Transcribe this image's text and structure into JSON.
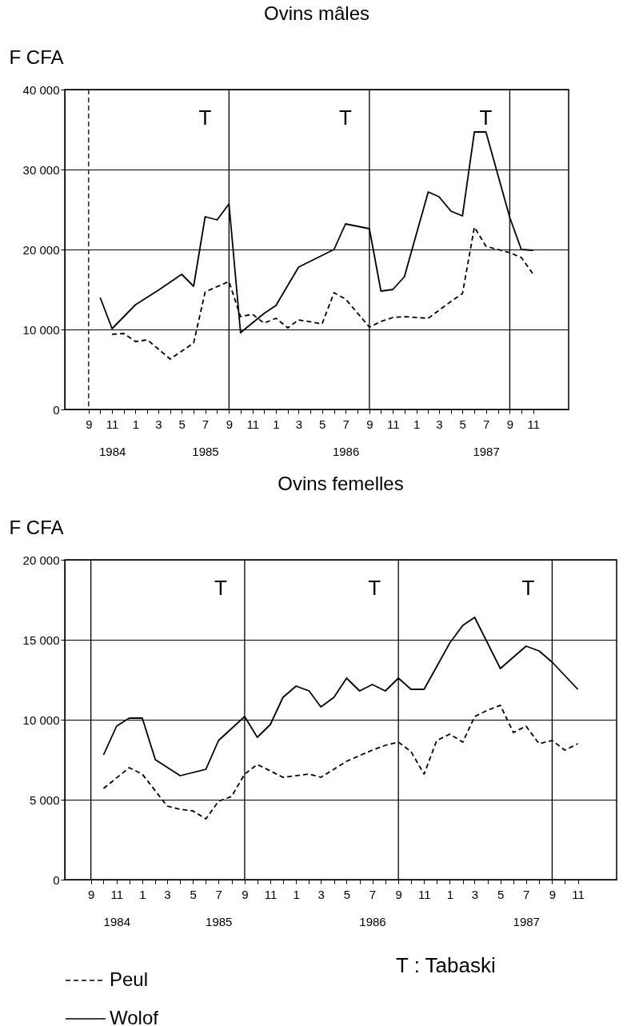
{
  "chart_data": [
    {
      "type": "line",
      "title": "Ovins mâles",
      "ylabel": "F CFA",
      "xlim": [
        "1984-07",
        "1988-02"
      ],
      "ylim": [
        0,
        40000
      ],
      "xticks": [
        {
          "value": "1984-09",
          "label": "9"
        },
        {
          "value": "1984-10",
          "label": null
        },
        {
          "value": "1984-11",
          "label": "11\n1984"
        },
        {
          "value": "1984-12",
          "label": null
        },
        {
          "value": "1985-01",
          "label": "1"
        },
        {
          "value": "1985-02",
          "label": null
        },
        {
          "value": "1985-03",
          "label": "3"
        },
        {
          "value": "1985-04",
          "label": null
        },
        {
          "value": "1985-05",
          "label": "5"
        },
        {
          "value": "1985-06",
          "label": null
        },
        {
          "value": "1985-07",
          "label": "7\n1985"
        },
        {
          "value": "1985-08",
          "label": null
        },
        {
          "value": "1985-09",
          "label": "9"
        },
        {
          "value": "1985-10",
          "label": null
        },
        {
          "value": "1985-11",
          "label": "11"
        },
        {
          "value": "1985-12",
          "label": null
        },
        {
          "value": "1986-01",
          "label": "1"
        },
        {
          "value": "1986-02",
          "label": null
        },
        {
          "value": "1986-03",
          "label": "3"
        },
        {
          "value": "1986-04",
          "label": null
        },
        {
          "value": "1986-05",
          "label": "5"
        },
        {
          "value": "1986-06",
          "label": null
        },
        {
          "value": "1986-07",
          "label": "7\n1986"
        },
        {
          "value": "1986-08",
          "label": null
        },
        {
          "value": "1986-09",
          "label": "9"
        },
        {
          "value": "1986-10",
          "label": null
        },
        {
          "value": "1986-11",
          "label": "11"
        },
        {
          "value": "1986-12",
          "label": null
        },
        {
          "value": "1987-01",
          "label": "1"
        },
        {
          "value": "1987-02",
          "label": null
        },
        {
          "value": "1987-03",
          "label": "3"
        },
        {
          "value": "1987-04",
          "label": null
        },
        {
          "value": "1987-05",
          "label": "5"
        },
        {
          "value": "1987-06",
          "label": null
        },
        {
          "value": "1987-07",
          "label": "7\n1987"
        },
        {
          "value": "1987-08",
          "label": null
        },
        {
          "value": "1987-09",
          "label": "9"
        },
        {
          "value": "1987-10",
          "label": null
        },
        {
          "value": "1987-11",
          "label": "11"
        }
      ],
      "yticks": [
        0,
        {
          "value": 10000,
          "label": "10 000"
        },
        {
          "value": 20000,
          "label": "20 000"
        },
        {
          "value": 30000,
          "label": "30 000"
        },
        {
          "value": 40000,
          "label": "40 000"
        }
      ],
      "grid": "y",
      "legend": false,
      "series": [
        {
          "color": "#000000",
          "line_style": "dashed",
          "x": [
            "1984-11",
            "1984-12",
            "1985-01",
            "1985-02",
            "1985-04",
            "1985-06",
            "1985-07",
            "1985-09",
            "1985-10",
            "1985-11",
            "1985-12",
            "1986-01",
            "1986-02",
            "1986-03",
            "1986-05",
            "1986-06",
            "1986-07",
            "1986-09",
            "1986-10",
            "1986-11",
            "1986-12",
            "1987-02",
            "1987-04",
            "1987-05",
            "1987-06",
            "1987-07",
            "1987-09",
            "1987-10",
            "1987-11"
          ],
          "values": [
            9400,
            9500,
            8500,
            8700,
            6300,
            8300,
            14700,
            16000,
            11600,
            11900,
            10800,
            11400,
            10200,
            11200,
            10700,
            14600,
            13800,
            10300,
            11000,
            11500,
            11600,
            11400,
            13500,
            14500,
            22800,
            20400,
            19600,
            19000,
            16900
          ]
        },
        {
          "color": "#000000",
          "line_style": "solid",
          "x": [
            "1984-10",
            "1984-11",
            "1985-01",
            "1985-03",
            "1985-05",
            "1985-06",
            "1985-07",
            "1985-08",
            "1985-09",
            "1985-10",
            "1985-12",
            "1986-01",
            "1986-03",
            "1986-06",
            "1986-07",
            "1986-09",
            "1986-10",
            "1986-11",
            "1986-12",
            "1987-02",
            "1987-03",
            "1987-04",
            "1987-05",
            "1987-06",
            "1987-07",
            "1987-09",
            "1987-10",
            "1987-11"
          ],
          "values": [
            14000,
            10100,
            13100,
            14900,
            16900,
            15400,
            24100,
            23700,
            25700,
            9600,
            12000,
            13000,
            17800,
            20000,
            23200,
            22600,
            14800,
            15000,
            16600,
            27200,
            26600,
            24800,
            24200,
            34700,
            34700,
            24000,
            20000,
            19900
          ]
        }
      ],
      "ref_lines": [
        {
          "axis": "x",
          "value": "1984-09",
          "color": "#000000",
          "line_style": "dashed"
        },
        {
          "axis": "x",
          "value": "1985-09",
          "color": "#000000",
          "label": "T"
        },
        {
          "axis": "x",
          "value": "1986-09",
          "color": "#000000",
          "label": "T"
        },
        {
          "axis": "x",
          "value": "1987-09",
          "color": "#000000",
          "label": "T"
        }
      ]
    },
    {
      "type": "line",
      "title": "Ovins femelles",
      "ylabel": "F CFA",
      "xlim": [
        "1984-07",
        "1988-02"
      ],
      "ylim": [
        0,
        20000
      ],
      "xticks": [
        {
          "value": "1984-09",
          "label": "9"
        },
        {
          "value": "1984-10",
          "label": null
        },
        {
          "value": "1984-11",
          "label": "11\n1984"
        },
        {
          "value": "1984-12",
          "label": null
        },
        {
          "value": "1985-01",
          "label": "1"
        },
        {
          "value": "1985-02",
          "label": null
        },
        {
          "value": "1985-03",
          "label": "3"
        },
        {
          "value": "1985-04",
          "label": null
        },
        {
          "value": "1985-05",
          "label": "5"
        },
        {
          "value": "1985-06",
          "label": null
        },
        {
          "value": "1985-07",
          "label": "7\n1985"
        },
        {
          "value": "1985-08",
          "label": null
        },
        {
          "value": "1985-09",
          "label": "9"
        },
        {
          "value": "1985-10",
          "label": null
        },
        {
          "value": "1985-11",
          "label": "11"
        },
        {
          "value": "1985-12",
          "label": null
        },
        {
          "value": "1986-01",
          "label": "1"
        },
        {
          "value": "1986-02",
          "label": null
        },
        {
          "value": "1986-03",
          "label": "3"
        },
        {
          "value": "1986-04",
          "label": null
        },
        {
          "value": "1986-05",
          "label": "5"
        },
        {
          "value": "1986-06",
          "label": null
        },
        {
          "value": "1986-07",
          "label": "7\n1986"
        },
        {
          "value": "1986-08",
          "label": null
        },
        {
          "value": "1986-09",
          "label": "9"
        },
        {
          "value": "1986-10",
          "label": null
        },
        {
          "value": "1986-11",
          "label": "11"
        },
        {
          "value": "1986-12",
          "label": null
        },
        {
          "value": "1987-01",
          "label": "1"
        },
        {
          "value": "1987-02",
          "label": null
        },
        {
          "value": "1987-03",
          "label": "3"
        },
        {
          "value": "1987-04",
          "label": null
        },
        {
          "value": "1987-05",
          "label": "5"
        },
        {
          "value": "1987-06",
          "label": null
        },
        {
          "value": "1987-07",
          "label": "7\n1987"
        },
        {
          "value": "1987-08",
          "label": null
        },
        {
          "value": "1987-09",
          "label": "9"
        },
        {
          "value": "1987-10",
          "label": null
        },
        {
          "value": "1987-11",
          "label": "11"
        }
      ],
      "yticks": [
        0,
        {
          "value": 5000,
          "label": "5 000"
        },
        {
          "value": 10000,
          "label": "10 000"
        },
        {
          "value": 15000,
          "label": "15 000"
        },
        {
          "value": 20000,
          "label": "20 000"
        }
      ],
      "grid": "y",
      "legend": "bottom",
      "series": [
        {
          "name": "Peul",
          "color": "#000000",
          "line_style": "dashed",
          "x": [
            "1984-10",
            "1984-12",
            "1985-01",
            "1985-03",
            "1985-04",
            "1985-05",
            "1985-06",
            "1985-07",
            "1985-08",
            "1985-09",
            "1985-10",
            "1985-11",
            "1985-12",
            "1986-02",
            "1986-03",
            "1986-05",
            "1986-07",
            "1986-08",
            "1986-09",
            "1986-10",
            "1986-11",
            "1986-12",
            "1987-01",
            "1987-02",
            "1987-03",
            "1987-04",
            "1987-05",
            "1987-06",
            "1987-07",
            "1987-08",
            "1987-09",
            "1987-10",
            "1987-11"
          ],
          "values": [
            5700,
            7000,
            6600,
            4600,
            4400,
            4300,
            3800,
            4900,
            5200,
            6600,
            7200,
            6800,
            6400,
            6600,
            6400,
            7400,
            8100,
            8400,
            8600,
            8000,
            6600,
            8700,
            9100,
            8600,
            10200,
            10600,
            10900,
            9200,
            9600,
            8500,
            8700,
            8100,
            8500
          ]
        },
        {
          "name": "Wolof",
          "color": "#000000",
          "line_style": "solid",
          "x": [
            "1984-10",
            "1984-11",
            "1984-12",
            "1985-01",
            "1985-02",
            "1985-04",
            "1985-06",
            "1985-07",
            "1985-09",
            "1985-10",
            "1985-11",
            "1985-12",
            "1986-01",
            "1986-02",
            "1986-03",
            "1986-04",
            "1986-05",
            "1986-06",
            "1986-07",
            "1986-08",
            "1986-09",
            "1986-10",
            "1986-11",
            "1987-01",
            "1987-02",
            "1987-03",
            "1987-05",
            "1987-07",
            "1987-08",
            "1987-09",
            "1987-11"
          ],
          "values": [
            7800,
            9600,
            10100,
            10100,
            7500,
            6500,
            6900,
            8700,
            10200,
            8900,
            9700,
            11400,
            12100,
            11800,
            10800,
            11400,
            12600,
            11800,
            12200,
            11800,
            12600,
            11900,
            11900,
            14800,
            15900,
            16400,
            13200,
            14600,
            14300,
            13600,
            11900
          ]
        }
      ],
      "ref_lines": [
        {
          "axis": "x",
          "value": "1984-09",
          "color": "#000000"
        },
        {
          "axis": "x",
          "value": "1985-09",
          "color": "#000000",
          "label": "T"
        },
        {
          "axis": "x",
          "value": "1986-09",
          "color": "#000000",
          "label": "T"
        },
        {
          "axis": "x",
          "value": "1987-09",
          "color": "#000000",
          "label": "T"
        }
      ],
      "annotations": [
        "T : Tabaski"
      ]
    }
  ]
}
